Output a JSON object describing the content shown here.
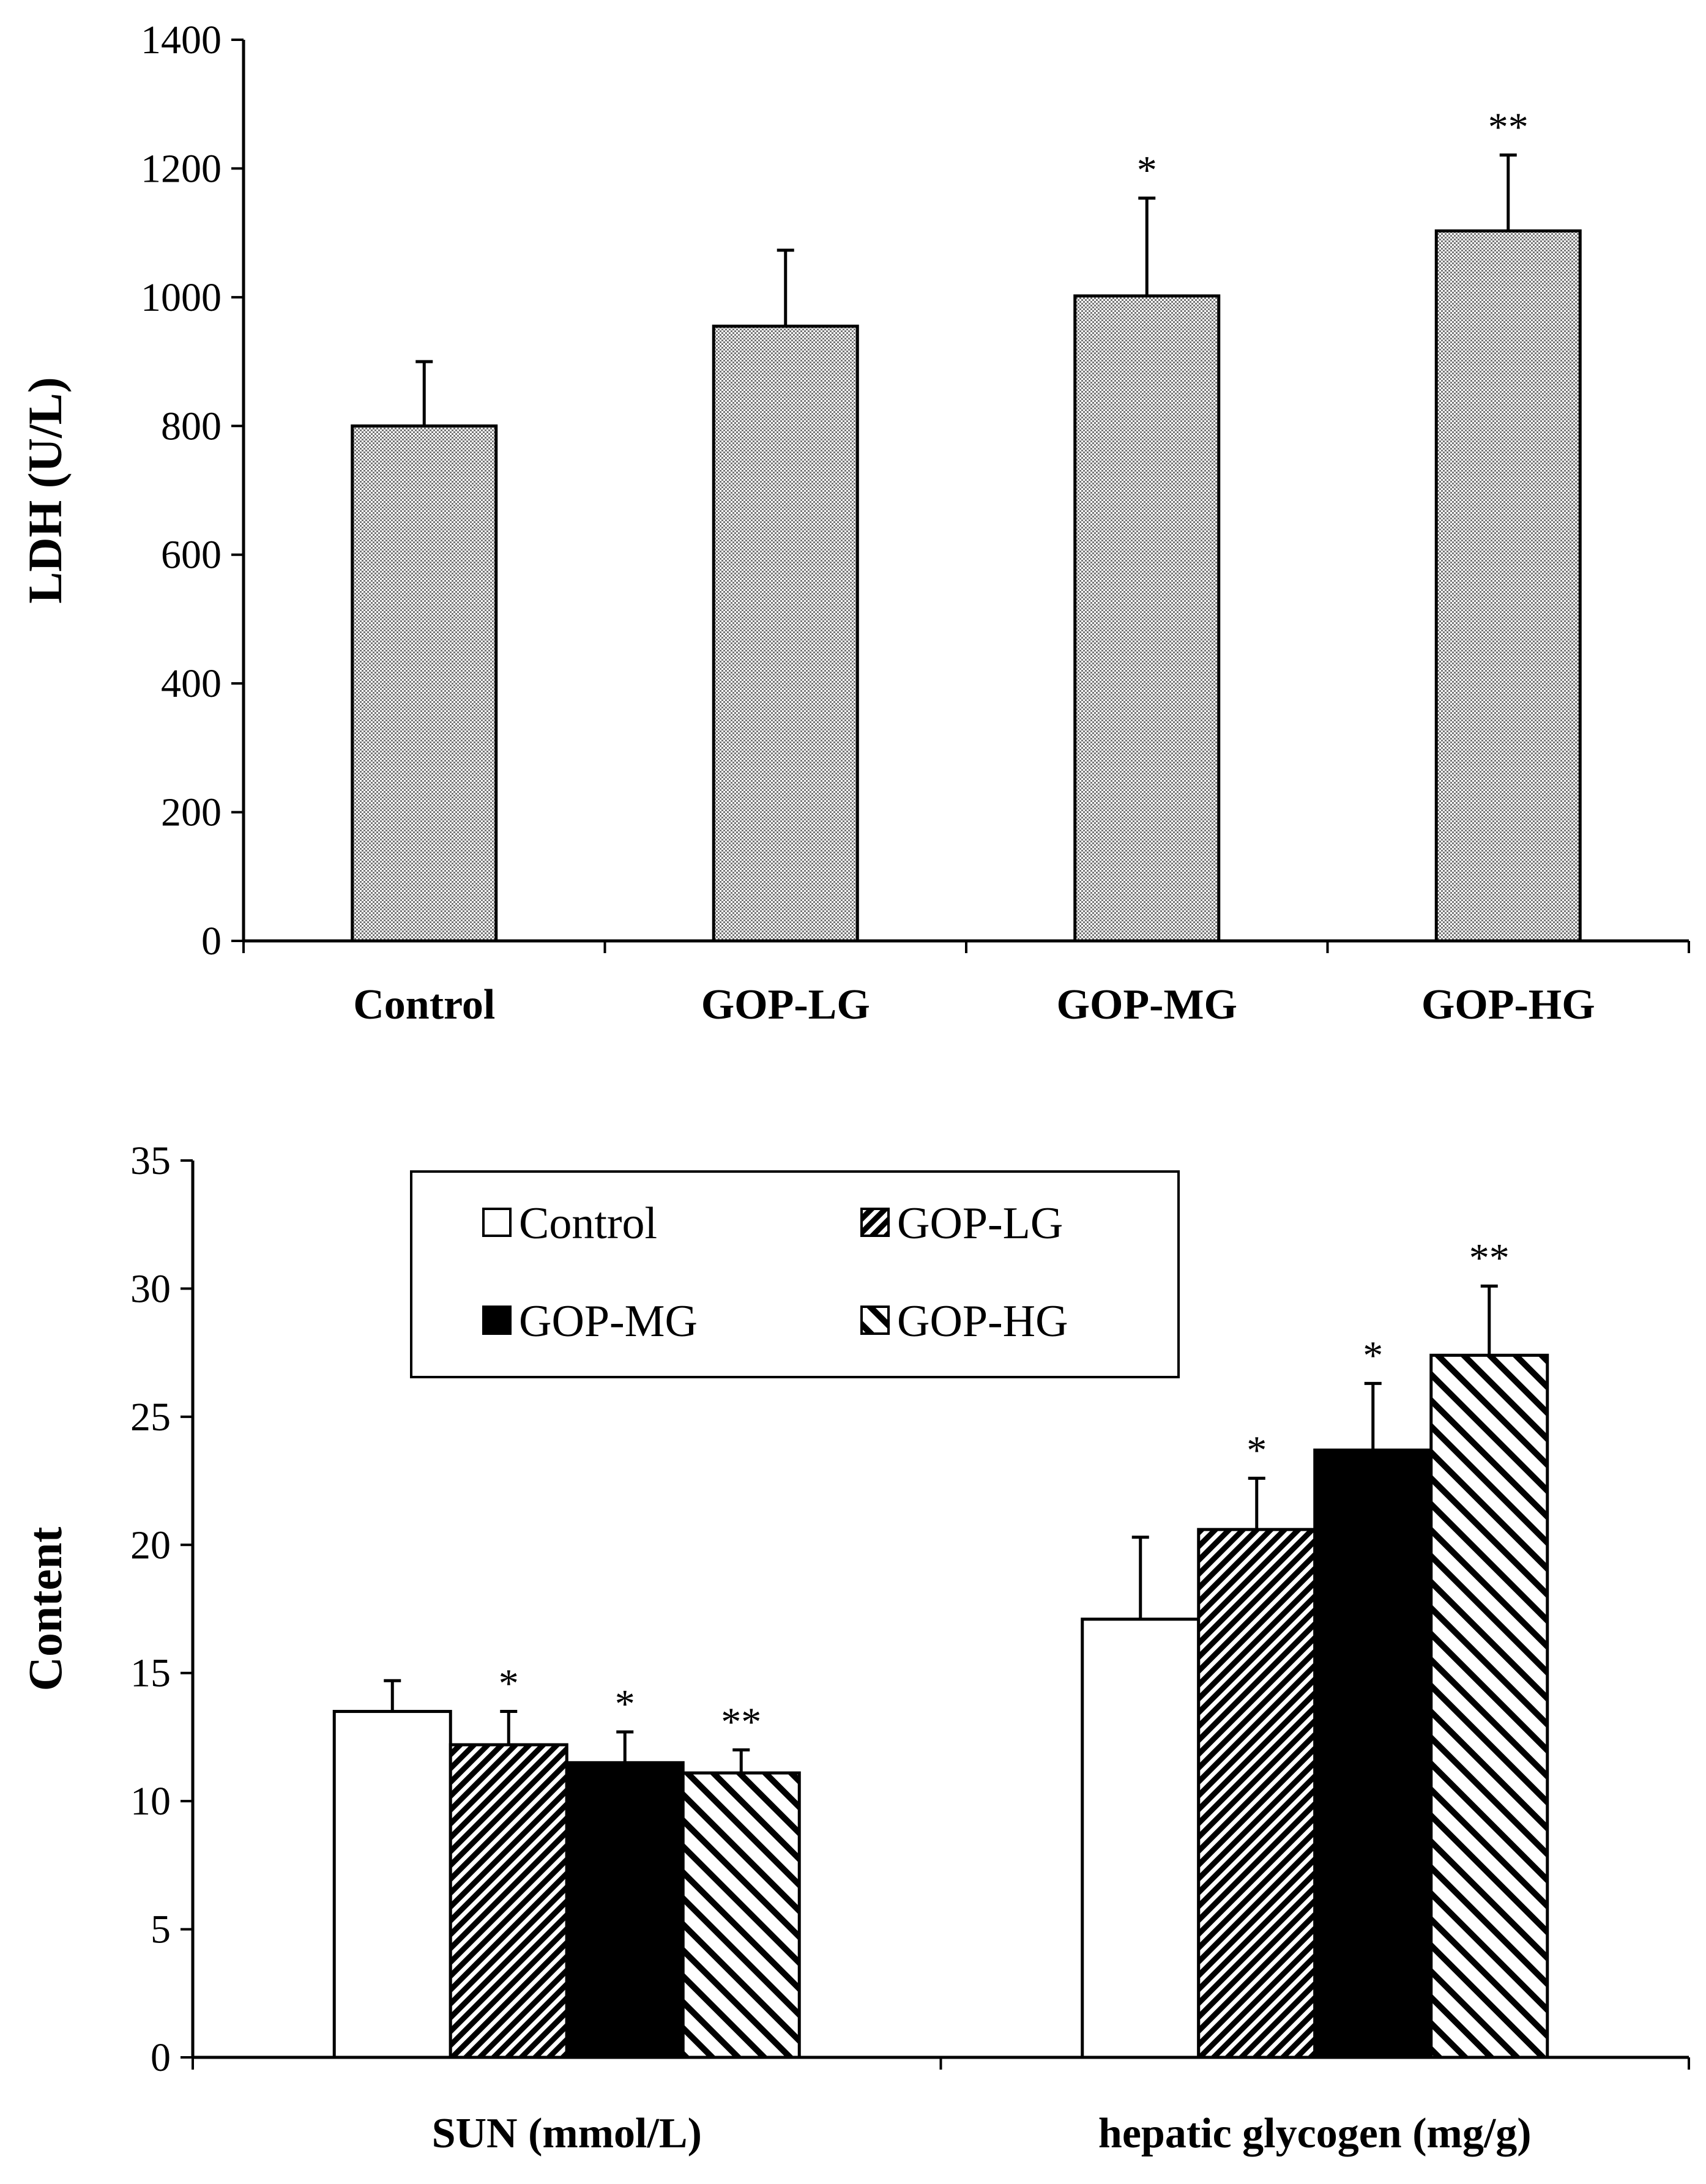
{
  "chart_data": [
    {
      "type": "bar",
      "ylabel": "LDH (U/L)",
      "xlabel": "",
      "ylim": [
        0,
        1400
      ],
      "yticks": [
        0,
        200,
        400,
        600,
        800,
        1000,
        1200,
        1400
      ],
      "categories": [
        "Control",
        "GOP-LG",
        "GOP-MG",
        "GOP-HG"
      ],
      "values": [
        800,
        955,
        1002,
        1103
      ],
      "errors": [
        100,
        118,
        152,
        118
      ],
      "annotations": [
        "",
        "",
        "*",
        "**"
      ],
      "fill": "dotted gray"
    },
    {
      "type": "bar",
      "ylabel": "Content",
      "xlabel": "",
      "ylim": [
        0,
        35
      ],
      "yticks": [
        0,
        5,
        10,
        15,
        20,
        25,
        30,
        35
      ],
      "categories": [
        "SUN (mmol/L)",
        "hepatic glycogen (mg/g)"
      ],
      "series": [
        {
          "name": "Control",
          "values": [
            13.5,
            17.1
          ],
          "errors": [
            1.2,
            3.2
          ],
          "annotations": [
            "",
            ""
          ],
          "pattern": "white"
        },
        {
          "name": "GOP-LG",
          "values": [
            12.2,
            20.6
          ],
          "errors": [
            1.3,
            2.0
          ],
          "annotations": [
            "*",
            "*"
          ],
          "pattern": "dense-diagonal"
        },
        {
          "name": "GOP-MG",
          "values": [
            11.5,
            23.7
          ],
          "errors": [
            1.2,
            2.6
          ],
          "annotations": [
            "*",
            "*"
          ],
          "pattern": "black"
        },
        {
          "name": "GOP-HG",
          "values": [
            11.1,
            27.4
          ],
          "errors": [
            0.9,
            2.7
          ],
          "annotations": [
            "**",
            "**"
          ],
          "pattern": "wide-diagonal"
        }
      ],
      "legend": {
        "position": "top-center",
        "entries": [
          "Control",
          "GOP-LG",
          "GOP-MG",
          "GOP-HG"
        ]
      }
    }
  ]
}
